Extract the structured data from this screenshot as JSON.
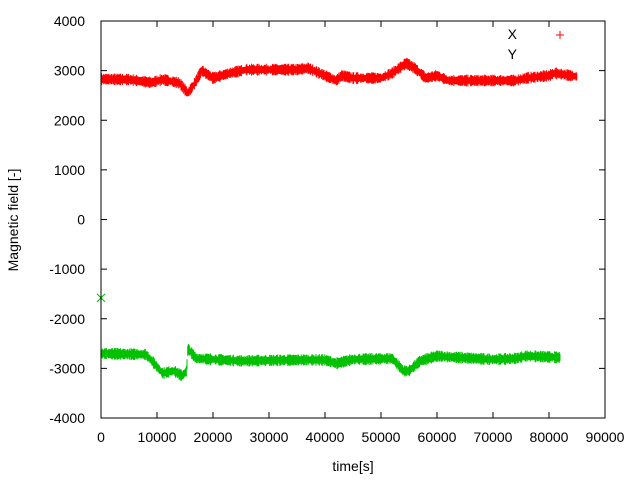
{
  "chart_data": {
    "type": "scatter",
    "xlabel": "time[s]",
    "ylabel": "Magnetic field [-]",
    "xlim": [
      0,
      90000
    ],
    "ylim": [
      -4000,
      4000
    ],
    "xticks": [
      "0",
      "10000",
      "20000",
      "30000",
      "40000",
      "50000",
      "60000",
      "70000",
      "80000",
      "90000"
    ],
    "yticks": [
      "-4000",
      "-3000",
      "-2000",
      "-1000",
      "0",
      "1000",
      "2000",
      "3000",
      "4000"
    ],
    "grid": false,
    "legend_position": "top-right",
    "series": [
      {
        "name": "X",
        "color": "#ff0000",
        "marker": "plus",
        "points": [
          [
            0,
            2830
          ],
          [
            5000,
            2820
          ],
          [
            9000,
            2760
          ],
          [
            11000,
            2820
          ],
          [
            14000,
            2750
          ],
          [
            15500,
            2550
          ],
          [
            16500,
            2700
          ],
          [
            18000,
            3000
          ],
          [
            20000,
            2850
          ],
          [
            23000,
            2950
          ],
          [
            26000,
            3020
          ],
          [
            35000,
            3020
          ],
          [
            37000,
            3050
          ],
          [
            40000,
            2900
          ],
          [
            42000,
            2800
          ],
          [
            43000,
            2900
          ],
          [
            45000,
            2850
          ],
          [
            50000,
            2850
          ],
          [
            52000,
            2950
          ],
          [
            54500,
            3150
          ],
          [
            56000,
            3050
          ],
          [
            58000,
            2850
          ],
          [
            60000,
            2900
          ],
          [
            62000,
            2800
          ],
          [
            74000,
            2800
          ],
          [
            76000,
            2850
          ],
          [
            80000,
            2900
          ],
          [
            81000,
            2950
          ],
          [
            85000,
            2880
          ]
        ]
      },
      {
        "name": "Y",
        "color": "#00c000",
        "marker": "cross",
        "points": [
          [
            0,
            -2700
          ],
          [
            8000,
            -2720
          ],
          [
            9500,
            -2900
          ],
          [
            11000,
            -3100
          ],
          [
            13000,
            -3050
          ],
          [
            14500,
            -3150
          ],
          [
            15300,
            -3050
          ],
          [
            15500,
            -2600
          ],
          [
            17000,
            -2800
          ],
          [
            25000,
            -2850
          ],
          [
            35000,
            -2830
          ],
          [
            40000,
            -2830
          ],
          [
            42000,
            -2900
          ],
          [
            45000,
            -2820
          ],
          [
            52000,
            -2800
          ],
          [
            54000,
            -3050
          ],
          [
            55000,
            -3050
          ],
          [
            57000,
            -2850
          ],
          [
            60000,
            -2750
          ],
          [
            62000,
            -2770
          ],
          [
            70000,
            -2820
          ],
          [
            74000,
            -2800
          ],
          [
            76000,
            -2750
          ],
          [
            82000,
            -2780
          ]
        ],
        "outliers": [
          [
            0,
            -1580
          ]
        ]
      }
    ]
  }
}
